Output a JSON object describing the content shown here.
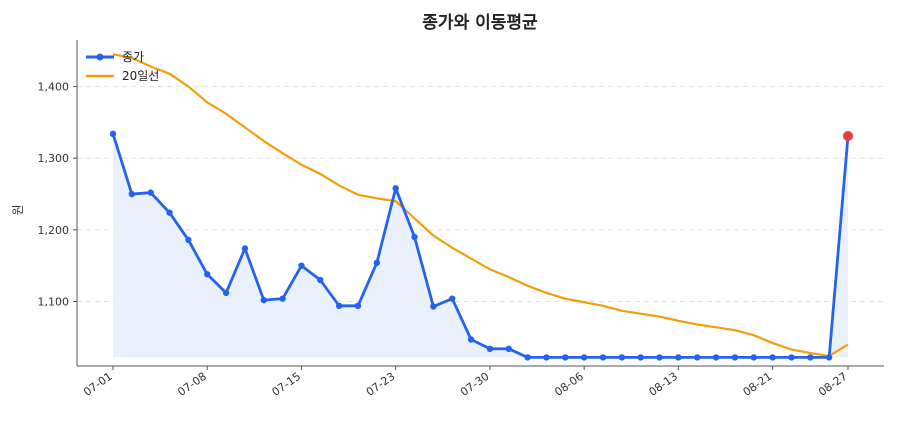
{
  "chart_data": {
    "type": "line",
    "title": "종가와 이동평균",
    "xlabel": "",
    "ylabel": "원",
    "ylim": [
      1010,
      1465
    ],
    "yticks": [
      1100,
      1200,
      1300,
      1400
    ],
    "ytick_labels": [
      "1,100",
      "1,200",
      "1,300",
      "1,400"
    ],
    "xticks": [
      {
        "index": 0,
        "label": "07-01"
      },
      {
        "index": 5,
        "label": "07-08"
      },
      {
        "index": 10,
        "label": "07-15"
      },
      {
        "index": 15,
        "label": "07-23"
      },
      {
        "index": 20,
        "label": "07-30"
      },
      {
        "index": 25,
        "label": "08-06"
      },
      {
        "index": 30,
        "label": "08-13"
      },
      {
        "index": 35,
        "label": "08-21"
      },
      {
        "index": 39,
        "label": "08-27"
      }
    ],
    "grid": "y-dashed",
    "legend": "top-left",
    "colors": {
      "close": "#2563eb",
      "ma": "#f59e0b",
      "fill": "#e8eefb",
      "last_point": "#e53e3e"
    },
    "series": [
      {
        "name": "종가",
        "values": [
          1334,
          1250,
          1252,
          1224,
          1186,
          1138,
          1112,
          1174,
          1102,
          1104,
          1150,
          1130,
          1094,
          1094,
          1154,
          1258,
          1190,
          1093,
          1104,
          1047,
          1034,
          1034,
          1022,
          1022,
          1022,
          1022,
          1022,
          1022,
          1022,
          1022,
          1022,
          1022,
          1022,
          1022,
          1022,
          1022,
          1022,
          1022,
          1022,
          1331
        ]
      },
      {
        "name": "20일선",
        "values": [
          1445,
          1440,
          1428,
          1418,
          1400,
          1378,
          1362,
          1343,
          1324,
          1307,
          1291,
          1278,
          1262,
          1249,
          1244,
          1240,
          1216,
          1192,
          1175,
          1160,
          1145,
          1134,
          1122,
          1112,
          1104,
          1099,
          1094,
          1087,
          1083,
          1079,
          1073,
          1068,
          1064,
          1060,
          1053,
          1042,
          1033,
          1028,
          1024,
          1040
        ]
      }
    ]
  }
}
